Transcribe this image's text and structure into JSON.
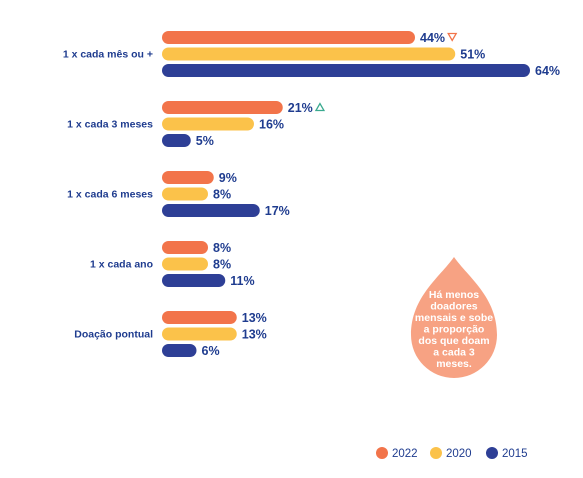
{
  "chart_data": {
    "type": "bar",
    "orientation": "horizontal",
    "categories": [
      "1 x cada mês ou +",
      "1 x cada 3 meses",
      "1 x cada 6 meses",
      "1 x cada ano",
      "Doação pontual"
    ],
    "series": [
      {
        "name": "2022",
        "color": "#f2744a",
        "values": [
          44,
          21,
          9,
          8,
          13
        ],
        "labels": [
          "44%",
          "21%",
          "9%",
          "8%",
          "13%"
        ]
      },
      {
        "name": "2020",
        "color": "#fbc24a",
        "values": [
          51,
          16,
          8,
          8,
          13
        ],
        "labels": [
          "51%",
          "16%",
          "8%",
          "8%",
          "13%"
        ]
      },
      {
        "name": "2015",
        "color": "#2e3f96",
        "values": [
          64,
          5,
          17,
          11,
          6
        ],
        "labels": [
          "64%",
          "5%",
          "17%",
          "11%",
          "6%"
        ]
      }
    ],
    "markers": [
      {
        "category": 0,
        "series": "2022",
        "icon": "down-triangle-icon",
        "color": "#f2744a"
      },
      {
        "category": 1,
        "series": "2022",
        "icon": "up-triangle-icon",
        "color": "#3aaa8f"
      }
    ],
    "legend": {
      "placement": "bottom-right",
      "items": [
        "2022",
        "2020",
        "2015"
      ]
    },
    "xlim": [
      0,
      64
    ],
    "grid": false,
    "callout": {
      "lines": [
        "Há menos",
        "doadores",
        "mensais e sobe",
        "a proporção",
        "dos que doam",
        "a cada 3",
        "meses."
      ],
      "color": "#f7a283"
    }
  }
}
